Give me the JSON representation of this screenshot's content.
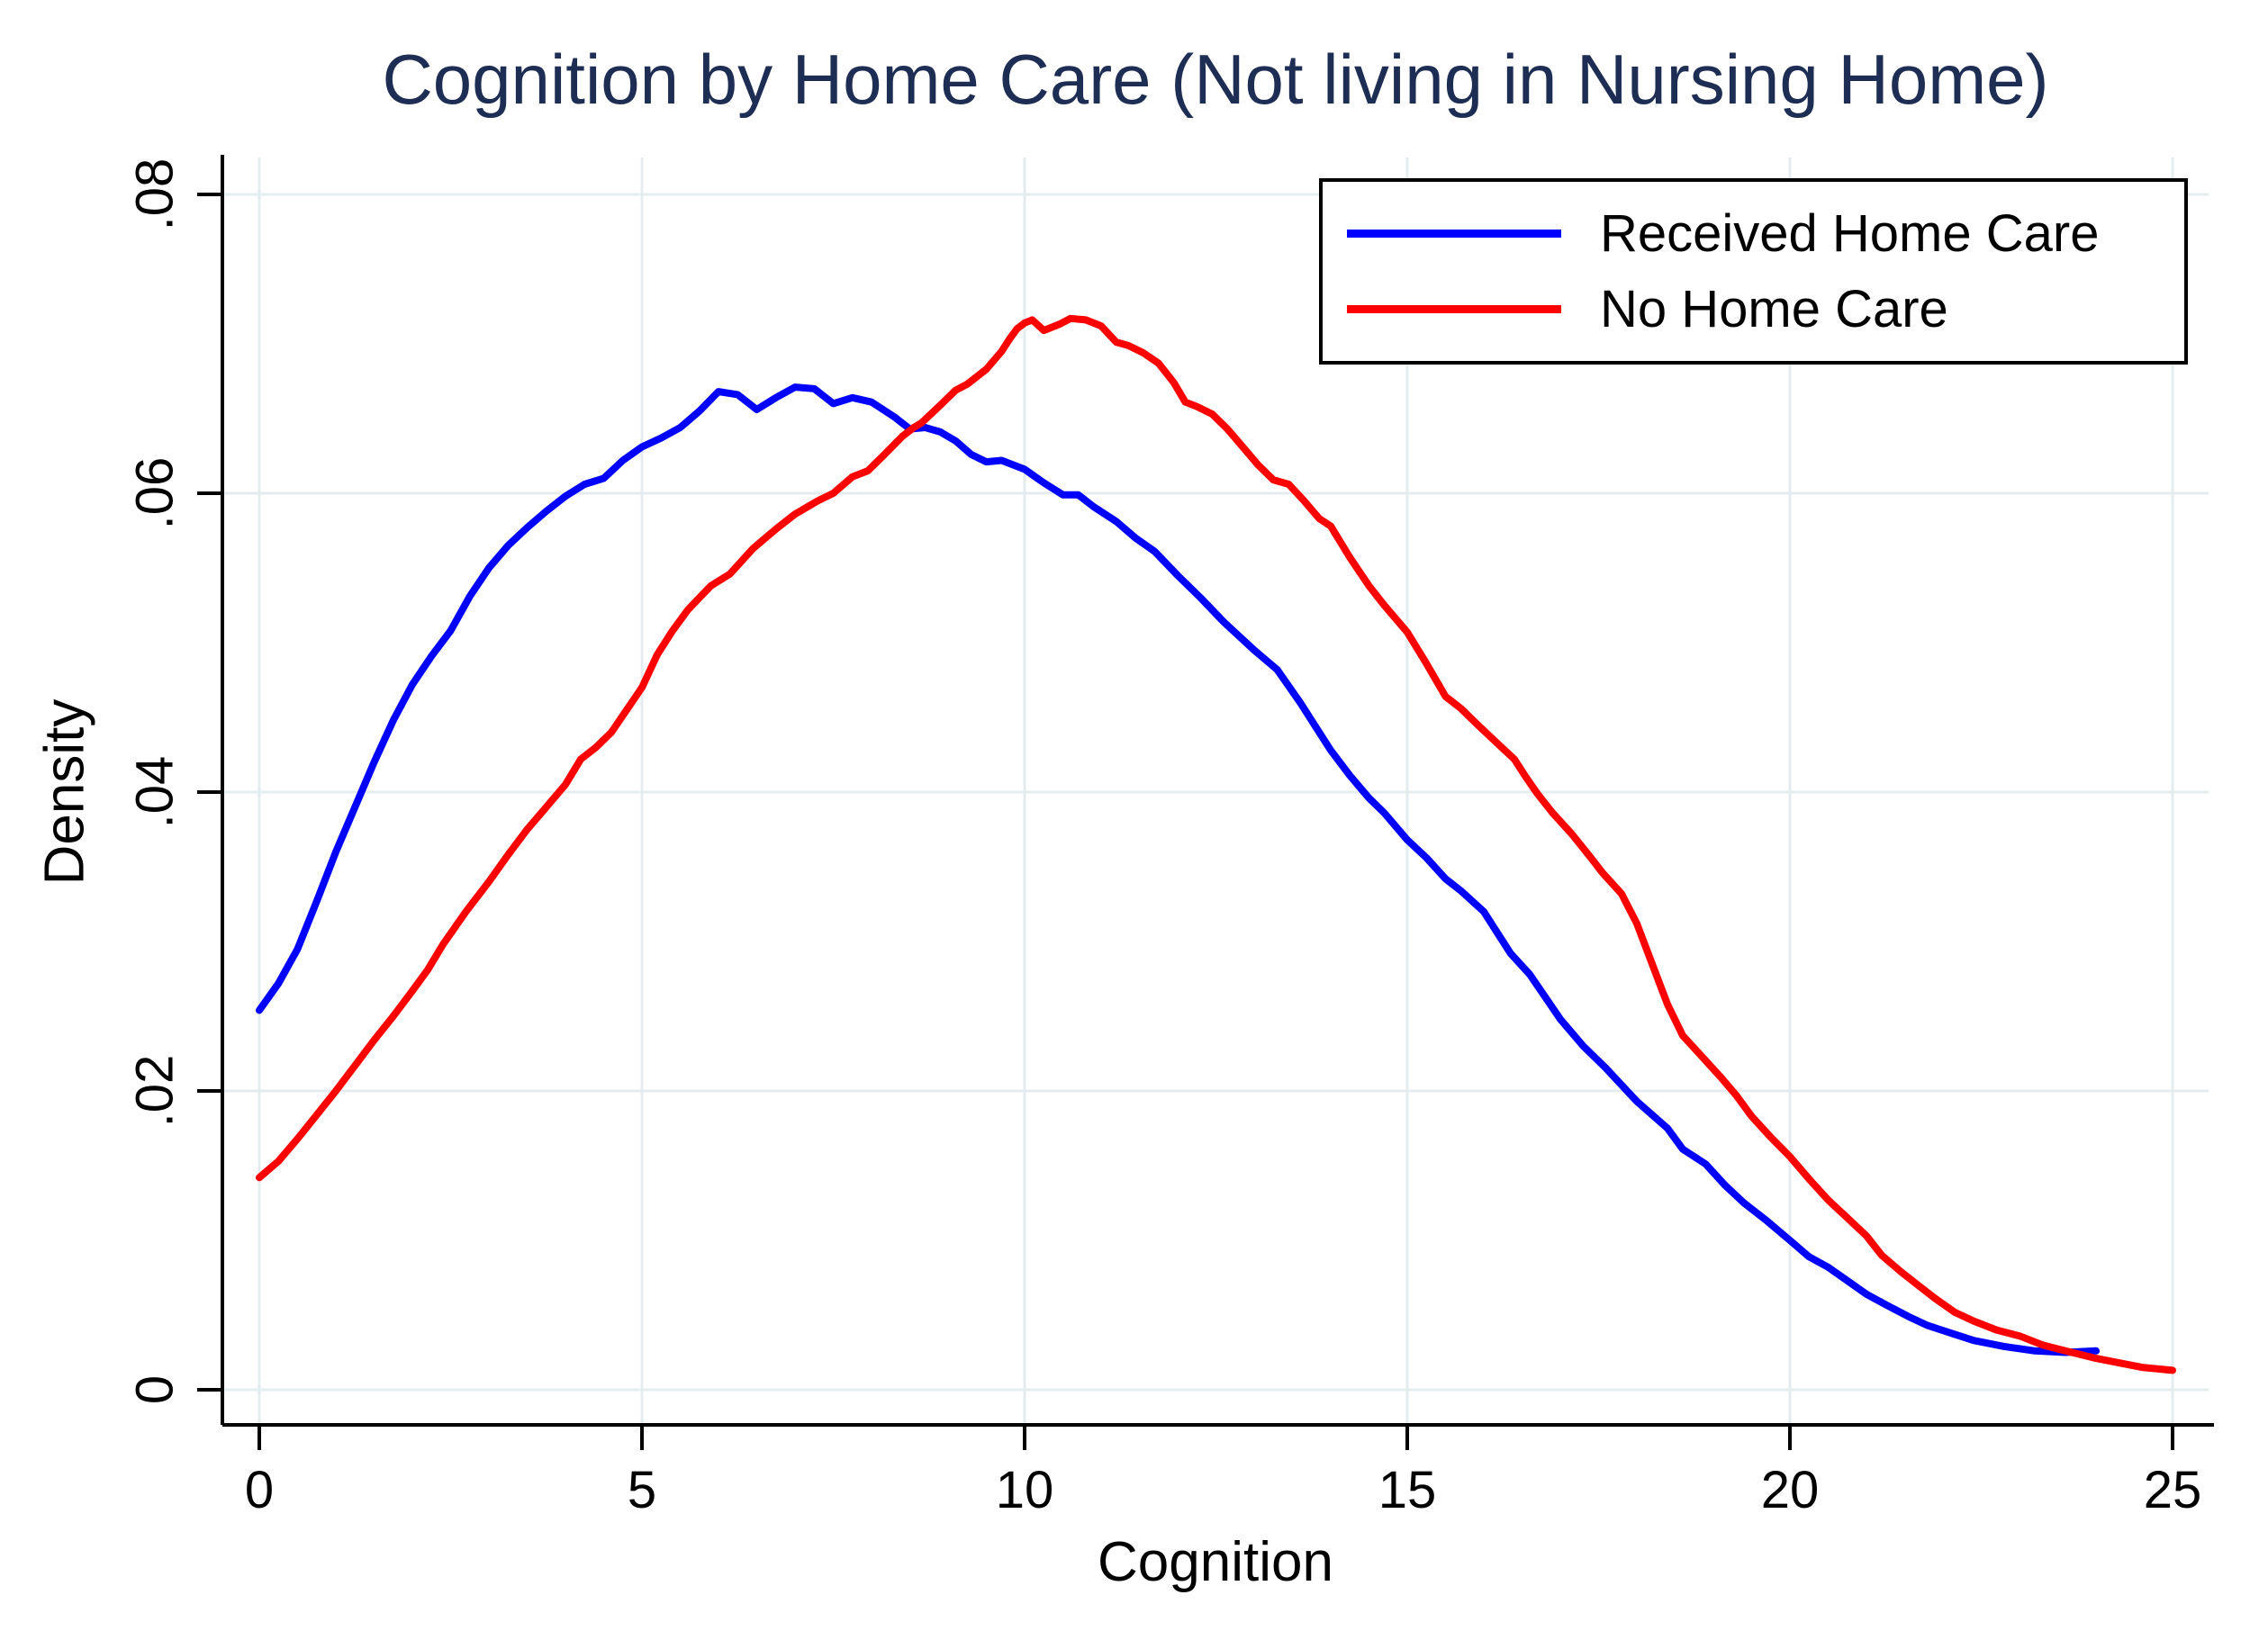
{
  "chart_data": {
    "type": "line",
    "title": "Cognition by Home Care (Not living in Nursing Home)",
    "xlabel": "Cognition",
    "ylabel": "Density",
    "xlim": [
      0,
      25
    ],
    "ylim": [
      0,
      0.08
    ],
    "x_ticks": [
      0,
      5,
      10,
      15,
      20,
      25
    ],
    "x_tick_labels": [
      "0",
      "5",
      "10",
      "15",
      "20",
      "25"
    ],
    "y_ticks": [
      0,
      0.02,
      0.04,
      0.06,
      0.08
    ],
    "y_tick_labels": [
      "0",
      ".02",
      ".04",
      ".06",
      ".08"
    ],
    "grid": true,
    "legend_position": "top-right",
    "legend": {
      "entries": [
        {
          "label": "Received Home Care",
          "color": "#0000ff"
        },
        {
          "label": "No Home Care",
          "color": "#ff0000"
        }
      ]
    },
    "series": [
      {
        "name": "Received Home Care",
        "color": "#0000ff",
        "points": [
          [
            0,
            0.0254
          ],
          [
            0.25,
            0.0272
          ],
          [
            0.5,
            0.0295
          ],
          [
            0.75,
            0.0327
          ],
          [
            1,
            0.036
          ],
          [
            1.25,
            0.039
          ],
          [
            1.5,
            0.042
          ],
          [
            1.75,
            0.0448
          ],
          [
            2,
            0.0472
          ],
          [
            2.25,
            0.0491
          ],
          [
            2.5,
            0.0508
          ],
          [
            2.75,
            0.0531
          ],
          [
            3,
            0.055
          ],
          [
            3.25,
            0.0565
          ],
          [
            3.5,
            0.0577
          ],
          [
            3.75,
            0.0588
          ],
          [
            4,
            0.0598
          ],
          [
            4.25,
            0.0606
          ],
          [
            4.5,
            0.061
          ],
          [
            4.75,
            0.0622
          ],
          [
            5,
            0.0631
          ],
          [
            5.25,
            0.0637
          ],
          [
            5.5,
            0.0644
          ],
          [
            5.75,
            0.0655
          ],
          [
            6,
            0.0668
          ],
          [
            6.25,
            0.0666
          ],
          [
            6.5,
            0.0656
          ],
          [
            6.75,
            0.0664
          ],
          [
            7,
            0.0671
          ],
          [
            7.25,
            0.067
          ],
          [
            7.5,
            0.066
          ],
          [
            7.75,
            0.0664
          ],
          [
            8,
            0.0661
          ],
          [
            8.3,
            0.0651
          ],
          [
            8.5,
            0.0643
          ],
          [
            8.7,
            0.0644
          ],
          [
            8.9,
            0.0641
          ],
          [
            9.1,
            0.0635
          ],
          [
            9.3,
            0.0626
          ],
          [
            9.5,
            0.0621
          ],
          [
            9.7,
            0.0622
          ],
          [
            10,
            0.0616
          ],
          [
            10.25,
            0.0607
          ],
          [
            10.5,
            0.0599
          ],
          [
            10.7,
            0.0599
          ],
          [
            10.9,
            0.0591
          ],
          [
            11.2,
            0.0581
          ],
          [
            11.45,
            0.057
          ],
          [
            11.7,
            0.0561
          ],
          [
            12,
            0.0545
          ],
          [
            12.3,
            0.053
          ],
          [
            12.6,
            0.0514
          ],
          [
            13,
            0.0495
          ],
          [
            13.3,
            0.0482
          ],
          [
            13.6,
            0.046
          ],
          [
            13.8,
            0.0444
          ],
          [
            14,
            0.0428
          ],
          [
            14.25,
            0.0411
          ],
          [
            14.5,
            0.0396
          ],
          [
            14.7,
            0.0386
          ],
          [
            15,
            0.0368
          ],
          [
            15.25,
            0.0356
          ],
          [
            15.5,
            0.0342
          ],
          [
            15.7,
            0.0334
          ],
          [
            16,
            0.032
          ],
          [
            16.15,
            0.0308
          ],
          [
            16.35,
            0.0292
          ],
          [
            16.6,
            0.0278
          ],
          [
            17,
            0.0248
          ],
          [
            17.3,
            0.023
          ],
          [
            17.6,
            0.0215
          ],
          [
            18,
            0.0193
          ],
          [
            18.4,
            0.0175
          ],
          [
            18.6,
            0.0161
          ],
          [
            18.9,
            0.0151
          ],
          [
            19.15,
            0.0137
          ],
          [
            19.4,
            0.0125
          ],
          [
            19.7,
            0.0113
          ],
          [
            20,
            0.01
          ],
          [
            20.25,
            0.0089
          ],
          [
            20.5,
            0.0082
          ],
          [
            20.75,
            0.0073
          ],
          [
            21,
            0.0064
          ],
          [
            21.25,
            0.0057
          ],
          [
            21.55,
            0.0049
          ],
          [
            21.8,
            0.0043
          ],
          [
            22.1,
            0.0038
          ],
          [
            22.4,
            0.0033
          ],
          [
            22.8,
            0.0029
          ],
          [
            23.2,
            0.0026
          ],
          [
            23.6,
            0.0025
          ],
          [
            24,
            0.0026
          ]
        ]
      },
      {
        "name": "No Home Care",
        "color": "#ff0000",
        "points": [
          [
            0,
            0.0142
          ],
          [
            0.25,
            0.0153
          ],
          [
            0.5,
            0.0168
          ],
          [
            0.75,
            0.0184
          ],
          [
            1,
            0.02
          ],
          [
            1.25,
            0.0217
          ],
          [
            1.5,
            0.0234
          ],
          [
            1.75,
            0.025
          ],
          [
            2,
            0.0267
          ],
          [
            2.2,
            0.0281
          ],
          [
            2.4,
            0.0298
          ],
          [
            2.7,
            0.032
          ],
          [
            3,
            0.034
          ],
          [
            3.25,
            0.0358
          ],
          [
            3.5,
            0.0375
          ],
          [
            3.75,
            0.039
          ],
          [
            4,
            0.0405
          ],
          [
            4.2,
            0.0422
          ],
          [
            4.4,
            0.043
          ],
          [
            4.6,
            0.044
          ],
          [
            4.8,
            0.0455
          ],
          [
            5,
            0.047
          ],
          [
            5.2,
            0.0492
          ],
          [
            5.4,
            0.0508
          ],
          [
            5.6,
            0.0522
          ],
          [
            5.9,
            0.0538
          ],
          [
            6.15,
            0.0546
          ],
          [
            6.45,
            0.0563
          ],
          [
            6.75,
            0.0576
          ],
          [
            7,
            0.0586
          ],
          [
            7.3,
            0.0595
          ],
          [
            7.5,
            0.06
          ],
          [
            7.75,
            0.0611
          ],
          [
            7.95,
            0.0615
          ],
          [
            8.15,
            0.0625
          ],
          [
            8.4,
            0.0638
          ],
          [
            8.55,
            0.0644
          ],
          [
            8.65,
            0.0647
          ],
          [
            8.9,
            0.0659
          ],
          [
            9.1,
            0.0669
          ],
          [
            9.25,
            0.0673
          ],
          [
            9.5,
            0.0683
          ],
          [
            9.7,
            0.0695
          ],
          [
            9.8,
            0.0703
          ],
          [
            9.9,
            0.071
          ],
          [
            10,
            0.0714
          ],
          [
            10.1,
            0.0716
          ],
          [
            10.25,
            0.0709
          ],
          [
            10.45,
            0.0713
          ],
          [
            10.6,
            0.0717
          ],
          [
            10.8,
            0.0716
          ],
          [
            11,
            0.0712
          ],
          [
            11.2,
            0.0701
          ],
          [
            11.35,
            0.0699
          ],
          [
            11.55,
            0.0694
          ],
          [
            11.75,
            0.0687
          ],
          [
            11.95,
            0.0674
          ],
          [
            12.1,
            0.0661
          ],
          [
            12.25,
            0.0658
          ],
          [
            12.45,
            0.0653
          ],
          [
            12.65,
            0.0643
          ],
          [
            12.85,
            0.0631
          ],
          [
            13.05,
            0.0619
          ],
          [
            13.25,
            0.0609
          ],
          [
            13.45,
            0.0606
          ],
          [
            13.65,
            0.0595
          ],
          [
            13.85,
            0.0583
          ],
          [
            14,
            0.0578
          ],
          [
            14.25,
            0.0557
          ],
          [
            14.5,
            0.0538
          ],
          [
            14.7,
            0.0525
          ],
          [
            15,
            0.0507
          ],
          [
            15.25,
            0.0486
          ],
          [
            15.5,
            0.0464
          ],
          [
            15.7,
            0.0456
          ],
          [
            15.9,
            0.0446
          ],
          [
            16.15,
            0.0434
          ],
          [
            16.4,
            0.0422
          ],
          [
            16.55,
            0.041
          ],
          [
            16.7,
            0.0399
          ],
          [
            16.9,
            0.0386
          ],
          [
            17.15,
            0.0372
          ],
          [
            17.4,
            0.0356
          ],
          [
            17.55,
            0.0346
          ],
          [
            17.8,
            0.0332
          ],
          [
            18,
            0.0312
          ],
          [
            18.2,
            0.0285
          ],
          [
            18.4,
            0.0258
          ],
          [
            18.6,
            0.0237
          ],
          [
            18.85,
            0.0223
          ],
          [
            19.1,
            0.0209
          ],
          [
            19.3,
            0.0197
          ],
          [
            19.5,
            0.0183
          ],
          [
            19.75,
            0.0169
          ],
          [
            20,
            0.0156
          ],
          [
            20.25,
            0.0141
          ],
          [
            20.5,
            0.0127
          ],
          [
            20.75,
            0.0115
          ],
          [
            21,
            0.0103
          ],
          [
            21.2,
            0.009
          ],
          [
            21.45,
            0.0079
          ],
          [
            21.7,
            0.0069
          ],
          [
            21.9,
            0.0061
          ],
          [
            22.15,
            0.0052
          ],
          [
            22.4,
            0.0046
          ],
          [
            22.7,
            0.004
          ],
          [
            23,
            0.0036
          ],
          [
            23.3,
            0.003
          ],
          [
            23.6,
            0.0026
          ],
          [
            24,
            0.0021
          ],
          [
            24.3,
            0.0018
          ],
          [
            24.6,
            0.0015
          ],
          [
            25,
            0.0013
          ]
        ]
      }
    ]
  },
  "colors": {
    "title": "#1e2d53",
    "axis": "#000000",
    "grid": "#e4ecef",
    "background": "#ffffff"
  }
}
